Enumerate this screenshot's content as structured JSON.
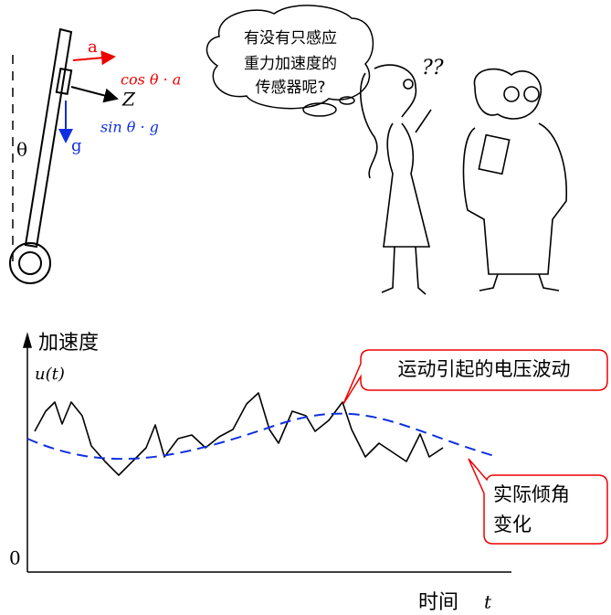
{
  "pendulum": {
    "accel_label": "a",
    "accel_component": "cos θ · a",
    "axis_label": "Z",
    "gravity_label": "g",
    "gravity_component": "sin θ · g",
    "angle_label": "θ"
  },
  "thought": {
    "lines": [
      "有没有只感应",
      "重力加速度的",
      "传感器呢?"
    ],
    "confusion": "??"
  },
  "graph": {
    "y_label": "加速度",
    "y_symbol": "u(t)",
    "origin": "0",
    "x_label": "时间",
    "x_symbol": "t",
    "callouts": [
      {
        "lines": [
          "运动引起的电压波动"
        ]
      },
      {
        "lines": [
          "实际倾角",
          "变化"
        ]
      }
    ]
  }
}
